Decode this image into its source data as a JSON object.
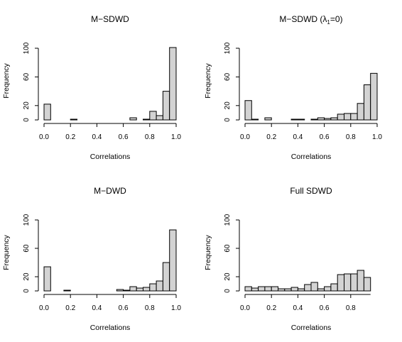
{
  "chart_data": [
    {
      "type": "bar",
      "title": "M−SDWD",
      "xlabel": "Correlations",
      "ylabel": "Frequency",
      "xlim": [
        0,
        1
      ],
      "ylim": [
        0,
        100
      ],
      "xticks": [
        "0.0",
        "0.2",
        "0.4",
        "0.6",
        "0.8",
        "1.0"
      ],
      "yticks": [
        "0",
        "20",
        "60",
        "100"
      ],
      "bin_width": 0.05,
      "bins_start": [
        0.0,
        0.05,
        0.1,
        0.15,
        0.2,
        0.25,
        0.3,
        0.35,
        0.4,
        0.45,
        0.5,
        0.55,
        0.6,
        0.65,
        0.7,
        0.75,
        0.8,
        0.85,
        0.9,
        0.95
      ],
      "values": [
        22,
        0,
        0,
        0,
        1,
        0,
        0,
        0,
        0,
        0,
        0,
        0,
        0,
        3,
        0,
        1,
        12,
        6,
        40,
        101
      ]
    },
    {
      "type": "bar",
      "title_main": "M−SDWD (",
      "title_lambda": "λ",
      "title_sub": "1",
      "title_tail": "=0)",
      "xlabel": "Correlations",
      "ylabel": "Frequency",
      "xlim": [
        0,
        1
      ],
      "ylim": [
        0,
        100
      ],
      "xticks": [
        "0.0",
        "0.2",
        "0.4",
        "0.6",
        "0.8",
        "1.0"
      ],
      "yticks": [
        "0",
        "20",
        "60",
        "100"
      ],
      "bin_width": 0.05,
      "bins_start": [
        0.0,
        0.05,
        0.1,
        0.15,
        0.2,
        0.25,
        0.3,
        0.35,
        0.4,
        0.45,
        0.5,
        0.55,
        0.6,
        0.65,
        0.7,
        0.75,
        0.8,
        0.85,
        0.9,
        0.95
      ],
      "values": [
        27,
        1,
        0,
        3,
        0,
        0,
        0,
        1,
        1,
        0,
        1,
        3,
        2,
        3,
        8,
        9,
        9,
        23,
        49,
        65
      ]
    },
    {
      "type": "bar",
      "title": "M−DWD",
      "xlabel": "Correlations",
      "ylabel": "Frequency",
      "xlim": [
        0,
        1
      ],
      "ylim": [
        0,
        100
      ],
      "xticks": [
        "0.0",
        "0.2",
        "0.4",
        "0.6",
        "0.8",
        "1.0"
      ],
      "yticks": [
        "0",
        "20",
        "60",
        "100"
      ],
      "bin_width": 0.05,
      "bins_start": [
        0.0,
        0.05,
        0.1,
        0.15,
        0.2,
        0.25,
        0.3,
        0.35,
        0.4,
        0.45,
        0.5,
        0.55,
        0.6,
        0.65,
        0.7,
        0.75,
        0.8,
        0.85,
        0.9,
        0.95
      ],
      "values": [
        34,
        0,
        0,
        1,
        0,
        0,
        0,
        0,
        0,
        0,
        0,
        2,
        1,
        6,
        4,
        5,
        10,
        14,
        40,
        86
      ]
    },
    {
      "type": "bar",
      "title": "Full SDWD",
      "xlabel": "Correlations",
      "ylabel": "Frequency",
      "xlim": [
        0,
        0.95
      ],
      "ylim": [
        0,
        100
      ],
      "xticks": [
        "0.0",
        "0.2",
        "0.4",
        "0.6",
        "0.8"
      ],
      "yticks": [
        "0",
        "20",
        "60",
        "100"
      ],
      "bin_width": 0.05,
      "bins_start": [
        0.0,
        0.05,
        0.1,
        0.15,
        0.2,
        0.25,
        0.3,
        0.35,
        0.4,
        0.45,
        0.5,
        0.55,
        0.6,
        0.65,
        0.7,
        0.75,
        0.8,
        0.85,
        0.9
      ],
      "values": [
        6,
        4,
        6,
        6,
        6,
        3,
        3,
        5,
        3,
        9,
        12,
        3,
        6,
        10,
        23,
        24,
        24,
        29,
        19
      ]
    }
  ]
}
